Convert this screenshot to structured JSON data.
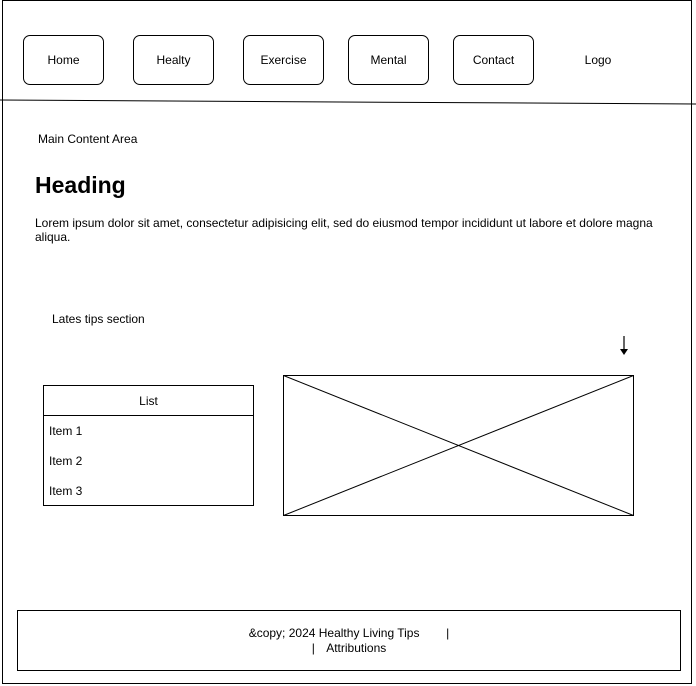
{
  "nav": {
    "items": [
      {
        "label": "Home"
      },
      {
        "label": "Healty"
      },
      {
        "label": "Exercise"
      },
      {
        "label": "Mental"
      },
      {
        "label": "Contact"
      }
    ],
    "logo": "Logo"
  },
  "main": {
    "area_label": "Main Content Area",
    "heading": "Heading",
    "paragraph": "Lorem ipsum dolor sit amet, consectetur adipisicing elit, sed do eiusmod tempor incididunt ut labore et dolore magna aliqua."
  },
  "tips": {
    "section_label": "Lates tips section",
    "list": {
      "title": "List",
      "items": [
        "Item 1",
        "Item 2",
        "Item 3"
      ]
    }
  },
  "footer": {
    "copyright": "&copy; 2024 Healthy Living Tips",
    "separator": "|",
    "attributions": "Attributions"
  }
}
